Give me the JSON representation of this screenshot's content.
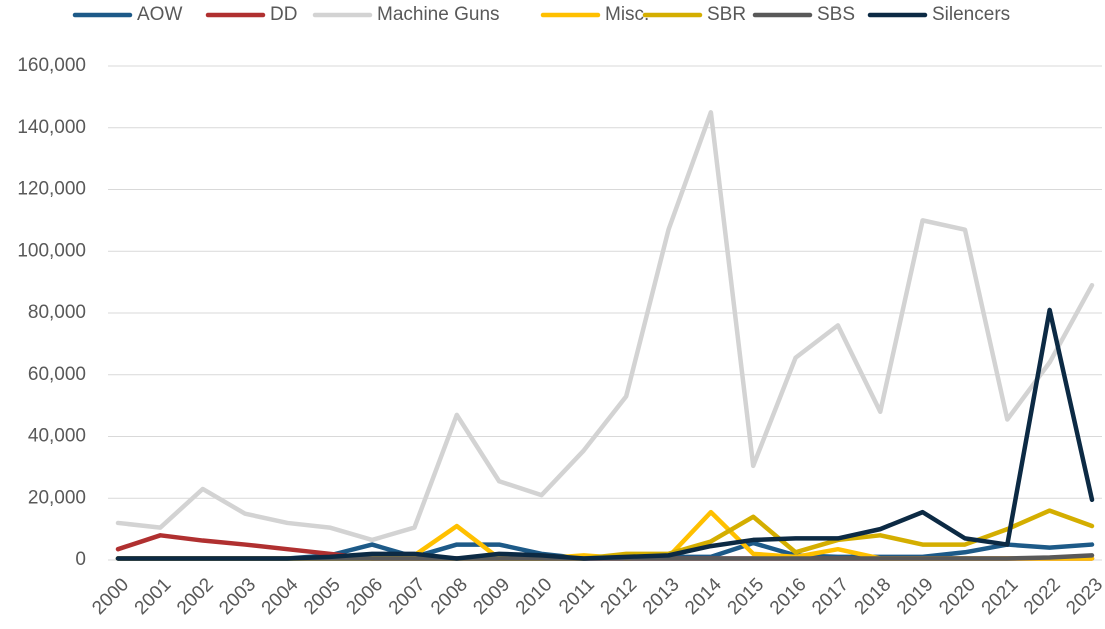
{
  "chart_data": {
    "type": "line",
    "categories": [
      "2000",
      "2001",
      "2002",
      "2003",
      "2004",
      "2005",
      "2006",
      "2007",
      "2008",
      "2009",
      "2010",
      "2011",
      "2012",
      "2013",
      "2014",
      "2015",
      "2016",
      "2017",
      "2018",
      "2019",
      "2020",
      "2021",
      "2022",
      "2023"
    ],
    "series": [
      {
        "name": "AOW",
        "color": "#1d5a88",
        "values": [
          500,
          500,
          500,
          500,
          500,
          1500,
          5000,
          1000,
          5000,
          5000,
          2000,
          500,
          1000,
          1000,
          1000,
          5500,
          1500,
          1000,
          1000,
          1000,
          2500,
          5000,
          4000,
          5000
        ]
      },
      {
        "name": "DD",
        "color": "#b03030",
        "values": [
          3500,
          8000,
          6300,
          5000,
          3500,
          2000,
          500,
          500,
          500,
          500,
          500,
          500,
          500,
          500,
          500,
          500,
          500,
          500,
          500,
          500,
          500,
          500,
          500,
          500
        ]
      },
      {
        "name": "Machine Guns",
        "color": "#d3d3d3",
        "values": [
          12000,
          10500,
          23000,
          15000,
          12000,
          10500,
          6500,
          10500,
          47000,
          25500,
          21000,
          35500,
          53000,
          107000,
          145000,
          30500,
          65500,
          76000,
          48000,
          110000,
          107000,
          45500,
          64000,
          89000
        ]
      },
      {
        "name": "Misc.",
        "color": "#ffc000",
        "values": [
          500,
          500,
          500,
          500,
          500,
          500,
          500,
          1500,
          11000,
          500,
          500,
          1500,
          500,
          1000,
          15500,
          2000,
          1000,
          3500,
          500,
          500,
          500,
          500,
          500,
          500
        ]
      },
      {
        "name": "SBR",
        "color": "#d4ae00",
        "values": [
          500,
          500,
          500,
          500,
          500,
          500,
          500,
          500,
          500,
          500,
          500,
          500,
          2000,
          2000,
          6000,
          14000,
          2500,
          6500,
          8000,
          5000,
          5000,
          10000,
          16000,
          11000
        ]
      },
      {
        "name": "SBS",
        "color": "#595959",
        "values": [
          500,
          500,
          500,
          500,
          500,
          500,
          500,
          500,
          500,
          500,
          500,
          500,
          500,
          500,
          500,
          500,
          500,
          500,
          500,
          500,
          500,
          500,
          800,
          1500
        ]
      },
      {
        "name": "Silencers",
        "color": "#0c2a44",
        "values": [
          500,
          500,
          500,
          500,
          500,
          1000,
          2000,
          2000,
          500,
          2000,
          1500,
          500,
          1000,
          1500,
          4500,
          6500,
          7000,
          7000,
          10000,
          15500,
          7000,
          5000,
          81000,
          19500
        ]
      }
    ],
    "ylim": [
      0,
      160000
    ],
    "yticks": [
      0,
      {
        "value": 20000,
        "label": "20,000"
      },
      {
        "value": 40000,
        "label": "40,000"
      },
      {
        "value": 60000,
        "label": "60,000"
      },
      {
        "value": 80000,
        "label": "80,000"
      },
      {
        "value": 100000,
        "label": "100,000"
      },
      {
        "value": 120000,
        "label": "120,000"
      },
      {
        "value": 140000,
        "label": "140,000"
      },
      {
        "value": 160000,
        "label": "160,000"
      }
    ],
    "grid": true,
    "legend": "top"
  }
}
